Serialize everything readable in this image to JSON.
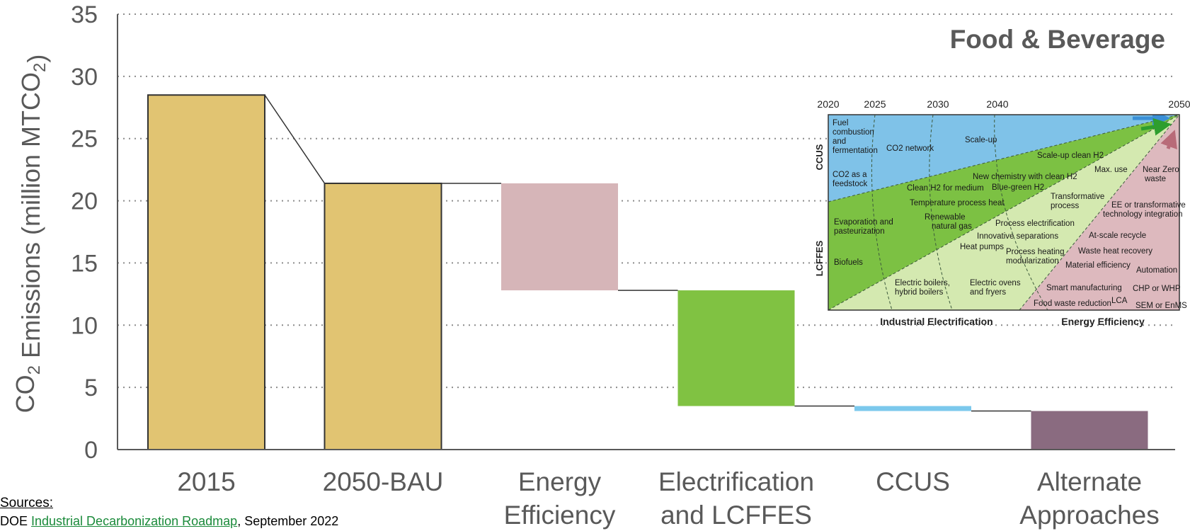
{
  "chart_data": {
    "type": "bar",
    "subtype": "waterfall",
    "title": "Food & Beverage",
    "ylabel": "CO2 Emissions (million MTCO2)",
    "ylim": [
      0,
      35
    ],
    "yticks": [
      0,
      5,
      10,
      15,
      20,
      25,
      30,
      35
    ],
    "grid": true,
    "categories": [
      [
        "2015"
      ],
      [
        "2050-BAU"
      ],
      [
        "Energy",
        "Efficiency"
      ],
      [
        "Electrification",
        "and LCFFES"
      ],
      [
        "CCUS"
      ],
      [
        "Alternate",
        "Approaches"
      ]
    ],
    "bars": [
      {
        "category": "2015",
        "base": 0,
        "top": 28.5,
        "color": "#E1C472"
      },
      {
        "category": "2050-BAU",
        "base": 0,
        "top": 21.4,
        "color": "#E1C472"
      },
      {
        "category": "Energy Efficiency",
        "base": 12.8,
        "top": 21.4,
        "color": "#D6B5B8"
      },
      {
        "category": "Electrification and LCFFES",
        "base": 3.5,
        "top": 12.8,
        "color": "#80C242"
      },
      {
        "category": "CCUS",
        "base": 3.1,
        "top": 3.5,
        "color": "#7BC8EC"
      },
      {
        "category": "Alternate Approaches",
        "base": 0,
        "top": 3.1,
        "color": "#8A6B80"
      }
    ]
  },
  "inset": {
    "years": [
      "2020",
      "2025",
      "2030",
      "2040",
      "2050"
    ],
    "side_labels": [
      "CCUS",
      "LCFFES"
    ],
    "bottom_labels": [
      "Industrial Electrification",
      "Energy Efficiency"
    ],
    "texts": [
      "Fuel",
      "combustion",
      "and",
      "fermentation",
      "CO2 network",
      "Scale-up",
      "CO2 as a",
      "feedstock",
      "Scale-up clean H2",
      "New chemistry with clean H2",
      "Max. use",
      "Near Zero",
      "waste",
      "Clean H2 for medium",
      "Blue-green H2",
      "Temperature process heat",
      "Transformative",
      "process",
      "Evaporation and",
      "pasteurization",
      "Renewable",
      "natural gas",
      "EE or transformative",
      "technology integration",
      "Process electrification",
      "Innovative separations",
      "At-scale recycle",
      "Heat pumps",
      "Process heating",
      "modularization",
      "Waste heat recovery",
      "Biofuels",
      "Material efficiency",
      "Automation",
      "Electric boilers,",
      "hybrid boilers",
      "Electric ovens",
      "and fryers",
      "Smart manufacturing",
      "CHP or WHP",
      "Food waste reduction",
      "LCA",
      "SEM or EnMS"
    ]
  },
  "sources": {
    "title": "Sources:",
    "prefix": "DOE ",
    "link_text": "Industrial Decarbonization Roadmap",
    "suffix": ", September 2022"
  }
}
